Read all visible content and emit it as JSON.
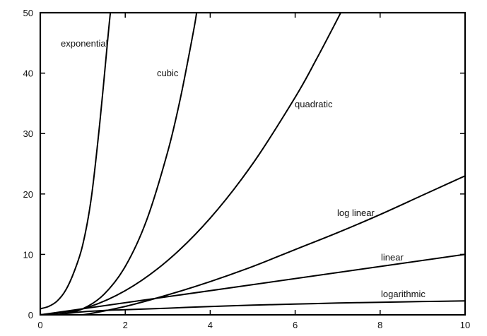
{
  "chart_data": {
    "type": "line",
    "title": "",
    "xlabel": "",
    "ylabel": "",
    "xlim": [
      0,
      10
    ],
    "ylim": [
      0,
      50
    ],
    "xticks": [
      0,
      2,
      4,
      6,
      8,
      10
    ],
    "yticks": [
      0,
      10,
      20,
      30,
      40,
      50
    ],
    "grid": false,
    "series": [
      {
        "name": "exponential",
        "x": [
          0,
          0.2,
          0.4,
          0.6,
          0.8,
          1.0,
          1.2,
          1.4,
          1.6,
          1.65
        ],
        "y": [
          1.0,
          1.4,
          2.3,
          4.1,
          7.2,
          11.6,
          19.3,
          31.7,
          46.5,
          50
        ]
      },
      {
        "name": "cubic",
        "x": [
          0,
          0.5,
          1.0,
          1.5,
          2.0,
          2.5,
          3.0,
          3.3,
          3.6,
          3.68
        ],
        "y": [
          0,
          0.13,
          1.0,
          3.4,
          8.0,
          15.6,
          27.0,
          35.9,
          46.7,
          50
        ]
      },
      {
        "name": "quadratic",
        "x": [
          0,
          1,
          2,
          3,
          4,
          5,
          6,
          6.5,
          7.0,
          7.07
        ],
        "y": [
          0,
          1,
          4,
          9,
          16,
          25,
          36,
          42.3,
          49.0,
          50
        ]
      },
      {
        "name": "log linear",
        "x": [
          0.2,
          0.5,
          1,
          2,
          3,
          4,
          5,
          6,
          7,
          8,
          9,
          10
        ],
        "y": [
          -0.3,
          -0.35,
          0,
          1.39,
          3.3,
          5.5,
          8.0,
          10.8,
          13.6,
          16.6,
          19.8,
          23.0
        ]
      },
      {
        "name": "linear",
        "x": [
          0,
          10
        ],
        "y": [
          0,
          10
        ]
      },
      {
        "name": "logarithmic",
        "x": [
          0.5,
          1,
          1.5,
          2,
          3,
          4,
          5,
          6,
          7,
          8,
          9,
          10
        ],
        "y": [
          0.15,
          0.5,
          0.72,
          0.85,
          1.1,
          1.38,
          1.6,
          1.78,
          1.95,
          2.08,
          2.2,
          2.3
        ]
      }
    ]
  }
}
